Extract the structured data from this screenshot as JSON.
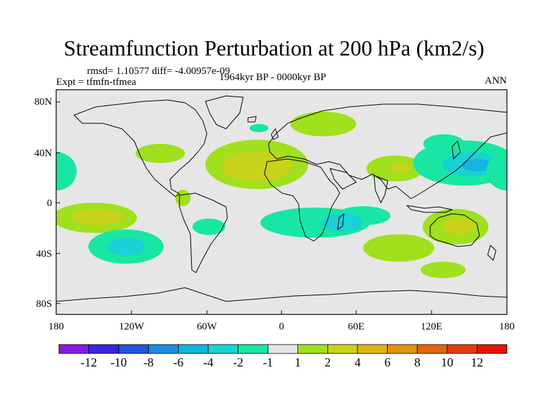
{
  "title": "Streamfunction Perturbation at 200 hPa (km2/s)",
  "stats": "rmsd= 1.10577 diff= -4.00957e-09",
  "experiment": "Expt = tfmfn-tfmea",
  "period": "1964kyr BP - 0000kyr BP",
  "season": "ANN",
  "lat_ticks": [
    "80N",
    "40N",
    "0",
    "40S",
    "80S"
  ],
  "lon_ticks": [
    "180",
    "120W",
    "60W",
    "0",
    "60E",
    "120E",
    "180"
  ],
  "colorbar": {
    "labels": [
      "-12",
      "-10",
      "-8",
      "-6",
      "-4",
      "-2",
      "-1",
      "1",
      "2",
      "4",
      "6",
      "8",
      "10",
      "12"
    ],
    "colors": [
      "#8a1ae0",
      "#3a25db",
      "#1d55dc",
      "#1a8cdc",
      "#14b4de",
      "#18d2d6",
      "#18e6a4",
      "#e6e6e6",
      "#a0e01c",
      "#c8d21a",
      "#deb412",
      "#e49010",
      "#e2640c",
      "#e23c0c",
      "#e61408"
    ]
  },
  "colors": {
    "land_outline": "#000000",
    "neutral_fill": "#e6e6e6"
  }
}
